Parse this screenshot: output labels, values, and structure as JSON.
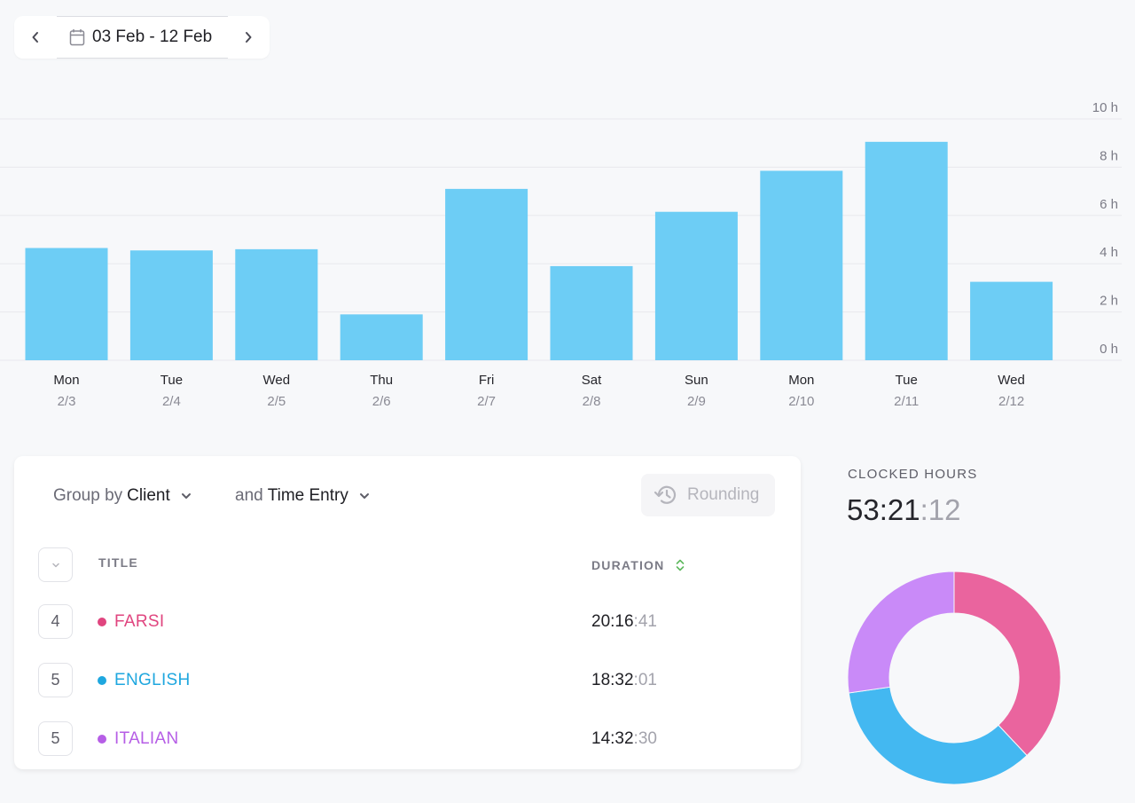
{
  "date_range": {
    "label": "03 Feb - 12 Feb"
  },
  "chart_data": {
    "type": "bar",
    "categories": [
      "Mon 2/3",
      "Tue 2/4",
      "Wed 2/5",
      "Thu 2/6",
      "Fri 2/7",
      "Sat 2/8",
      "Sun 2/9",
      "Mon 2/10",
      "Tue 2/11",
      "Wed 2/12"
    ],
    "days": [
      "Mon",
      "Tue",
      "Wed",
      "Thu",
      "Fri",
      "Sat",
      "Sun",
      "Mon",
      "Tue",
      "Wed"
    ],
    "dates": [
      "2/3",
      "2/4",
      "2/5",
      "2/6",
      "2/7",
      "2/8",
      "2/9",
      "2/10",
      "2/11",
      "2/12"
    ],
    "values": [
      4.65,
      4.55,
      4.6,
      1.9,
      7.1,
      3.9,
      6.15,
      7.85,
      9.05,
      3.25
    ],
    "ylim": [
      0,
      10
    ],
    "yticks": [
      "0 h",
      "2 h",
      "4 h",
      "6 h",
      "8 h",
      "10 h"
    ],
    "ytick_values": [
      0,
      2,
      4,
      6,
      8,
      10
    ],
    "bar_color": "#6dcdf5",
    "grid": true
  },
  "grouping": {
    "group_by_prefix": "Group by",
    "group_by_value": "Client",
    "and_prefix": "and",
    "and_value": "Time Entry",
    "rounding_label": "Rounding"
  },
  "table": {
    "col_title": "TITLE",
    "col_duration": "DURATION",
    "rows": [
      {
        "count": "4",
        "name": "FARSI",
        "color": "#e0457f",
        "dur_main": "20:16",
        "dur_sec": ":41"
      },
      {
        "count": "5",
        "name": "ENGLISH",
        "color": "#1fa7df",
        "dur_main": "18:32",
        "dur_sec": ":01"
      },
      {
        "count": "5",
        "name": "ITALIAN",
        "color": "#b65ee6",
        "dur_main": "14:32",
        "dur_sec": ":30"
      }
    ]
  },
  "clocked": {
    "title": "CLOCKED HOURS",
    "main": "53:21",
    "sec": ":12"
  },
  "donut": {
    "slices": [
      {
        "name": "FARSI",
        "value": 20.278,
        "color": "#ea649e"
      },
      {
        "name": "ENGLISH",
        "value": 18.534,
        "color": "#43b8f1"
      },
      {
        "name": "ITALIAN",
        "value": 14.542,
        "color": "#c98af8"
      }
    ]
  }
}
